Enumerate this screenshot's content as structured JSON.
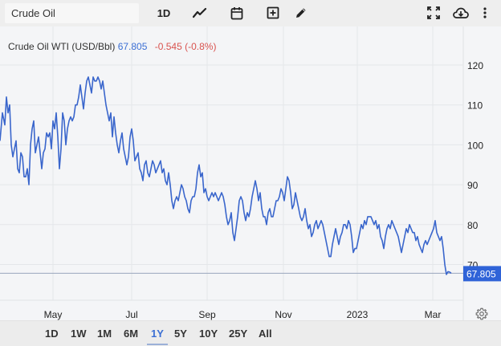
{
  "toolbar": {
    "search_value": "Crude Oil",
    "interval_label": "1D",
    "icons": [
      "line-chart-icon",
      "calendar-icon",
      "add-box-icon",
      "pencil-icon",
      "fullscreen-icon",
      "cloud-download-icon",
      "more-vertical-icon"
    ]
  },
  "legend": {
    "instrument": "Crude Oil WTI (USD/Bbl)",
    "price": "67.805",
    "change": "-0.545 (-0.8%)"
  },
  "price_tag": "67.805",
  "range_buttons": [
    {
      "label": "1D",
      "active": false
    },
    {
      "label": "1W",
      "active": false
    },
    {
      "label": "1M",
      "active": false
    },
    {
      "label": "6M",
      "active": false
    },
    {
      "label": "1Y",
      "active": true
    },
    {
      "label": "5Y",
      "active": false
    },
    {
      "label": "10Y",
      "active": false
    },
    {
      "label": "25Y",
      "active": false
    },
    {
      "label": "All",
      "active": false
    }
  ],
  "colors": {
    "line": "#3a66cc",
    "price_tag_bg": "#2f63d8",
    "change_negative": "#d9534f",
    "price_text": "#3b6fd4",
    "grid": "#e4e6ea"
  },
  "chart_data": {
    "type": "line",
    "title": "Crude Oil WTI (USD/Bbl)",
    "xlabel": "",
    "ylabel": "",
    "x_tick_labels": [
      "May",
      "Jul",
      "Sep",
      "Nov",
      "2023",
      "Mar"
    ],
    "y_tick_labels": [
      "70",
      "80",
      "90",
      "100",
      "110",
      "120"
    ],
    "ylim": [
      62,
      124
    ],
    "grid": true,
    "last_value": 67.805,
    "change": -0.545,
    "change_pct": -0.8,
    "series": [
      {
        "name": "Crude Oil WTI",
        "points": [
          [
            0,
            101
          ],
          [
            3,
            108
          ],
          [
            6,
            105
          ],
          [
            8,
            112
          ],
          [
            10,
            108
          ],
          [
            12,
            110
          ],
          [
            14,
            100
          ],
          [
            16,
            97
          ],
          [
            18,
            99
          ],
          [
            20,
            101
          ],
          [
            22,
            94
          ],
          [
            24,
            93
          ],
          [
            26,
            98
          ],
          [
            28,
            97
          ],
          [
            30,
            92
          ],
          [
            32,
            92
          ],
          [
            34,
            94
          ],
          [
            36,
            90
          ],
          [
            38,
            100
          ],
          [
            40,
            104
          ],
          [
            42,
            106
          ],
          [
            44,
            98
          ],
          [
            46,
            100
          ],
          [
            48,
            102
          ],
          [
            50,
            98
          ],
          [
            52,
            94
          ],
          [
            54,
            98
          ],
          [
            56,
            99
          ],
          [
            58,
            103
          ],
          [
            60,
            102
          ],
          [
            62,
            103
          ],
          [
            64,
            99
          ],
          [
            66,
            106
          ],
          [
            68,
            104
          ],
          [
            70,
            108
          ],
          [
            72,
            102
          ],
          [
            74,
            94
          ],
          [
            76,
            99
          ],
          [
            78,
            108
          ],
          [
            80,
            106
          ],
          [
            82,
            100
          ],
          [
            84,
            104
          ],
          [
            86,
            106
          ],
          [
            88,
            107
          ],
          [
            90,
            106
          ],
          [
            92,
            107
          ],
          [
            94,
            110
          ],
          [
            96,
            110
          ],
          [
            98,
            112
          ],
          [
            100,
            115
          ],
          [
            102,
            112
          ],
          [
            104,
            109
          ],
          [
            106,
            113
          ],
          [
            108,
            116
          ],
          [
            110,
            117
          ],
          [
            112,
            115
          ],
          [
            114,
            113
          ],
          [
            116,
            117
          ],
          [
            118,
            116
          ],
          [
            120,
            116
          ],
          [
            122,
            117
          ],
          [
            124,
            116
          ],
          [
            126,
            114
          ],
          [
            128,
            116
          ],
          [
            130,
            113
          ],
          [
            132,
            110
          ],
          [
            134,
            108
          ],
          [
            136,
            106
          ],
          [
            138,
            108
          ],
          [
            140,
            102
          ],
          [
            142,
            107
          ],
          [
            144,
            103
          ],
          [
            146,
            100
          ],
          [
            148,
            98
          ],
          [
            150,
            101
          ],
          [
            152,
            103
          ],
          [
            154,
            99
          ],
          [
            156,
            97
          ],
          [
            158,
            95
          ],
          [
            160,
            97
          ],
          [
            162,
            102
          ],
          [
            164,
            104
          ],
          [
            166,
            101
          ],
          [
            168,
            96
          ],
          [
            170,
            97
          ],
          [
            172,
            98
          ],
          [
            174,
            94
          ],
          [
            176,
            93
          ],
          [
            178,
            91
          ],
          [
            180,
            95
          ],
          [
            182,
            96
          ],
          [
            184,
            93
          ],
          [
            186,
            92
          ],
          [
            188,
            94
          ],
          [
            190,
            96
          ],
          [
            192,
            95
          ],
          [
            194,
            93
          ],
          [
            196,
            94
          ],
          [
            198,
            95
          ],
          [
            200,
            96
          ],
          [
            202,
            93
          ],
          [
            204,
            94
          ],
          [
            206,
            91
          ],
          [
            208,
            90
          ],
          [
            210,
            93
          ],
          [
            212,
            90
          ],
          [
            214,
            86
          ],
          [
            216,
            84
          ],
          [
            218,
            86
          ],
          [
            220,
            87
          ],
          [
            222,
            86
          ],
          [
            224,
            88
          ],
          [
            226,
            90
          ],
          [
            228,
            89
          ],
          [
            230,
            87
          ],
          [
            232,
            86
          ],
          [
            234,
            84
          ],
          [
            236,
            83
          ],
          [
            238,
            86
          ],
          [
            240,
            87
          ],
          [
            242,
            87
          ],
          [
            244,
            89
          ],
          [
            246,
            93
          ],
          [
            248,
            95
          ],
          [
            250,
            92
          ],
          [
            252,
            93
          ],
          [
            254,
            88
          ],
          [
            256,
            89
          ],
          [
            258,
            87
          ],
          [
            260,
            86
          ],
          [
            262,
            87
          ],
          [
            264,
            88
          ],
          [
            266,
            87
          ],
          [
            268,
            88
          ],
          [
            270,
            87
          ],
          [
            272,
            86
          ],
          [
            274,
            87
          ],
          [
            276,
            88
          ],
          [
            278,
            87
          ],
          [
            280,
            85
          ],
          [
            282,
            82
          ],
          [
            284,
            80
          ],
          [
            286,
            81
          ],
          [
            288,
            83
          ],
          [
            290,
            78
          ],
          [
            292,
            76
          ],
          [
            294,
            79
          ],
          [
            296,
            82
          ],
          [
            298,
            86
          ],
          [
            300,
            87
          ],
          [
            302,
            86
          ],
          [
            304,
            83
          ],
          [
            306,
            81
          ],
          [
            308,
            83
          ],
          [
            310,
            82
          ],
          [
            312,
            84
          ],
          [
            314,
            87
          ],
          [
            316,
            89
          ],
          [
            318,
            91
          ],
          [
            320,
            89
          ],
          [
            322,
            86
          ],
          [
            324,
            88
          ],
          [
            326,
            84
          ],
          [
            328,
            82
          ],
          [
            330,
            82
          ],
          [
            332,
            80
          ],
          [
            334,
            83
          ],
          [
            336,
            84
          ],
          [
            338,
            82
          ],
          [
            340,
            82
          ],
          [
            342,
            84
          ],
          [
            344,
            86
          ],
          [
            346,
            86
          ],
          [
            348,
            87
          ],
          [
            350,
            89
          ],
          [
            352,
            88
          ],
          [
            354,
            86
          ],
          [
            356,
            89
          ],
          [
            358,
            92
          ],
          [
            360,
            91
          ],
          [
            362,
            88
          ],
          [
            364,
            84
          ],
          [
            366,
            85
          ],
          [
            368,
            88
          ],
          [
            370,
            86
          ],
          [
            372,
            84
          ],
          [
            374,
            82
          ],
          [
            376,
            81
          ],
          [
            378,
            82
          ],
          [
            380,
            84
          ],
          [
            382,
            81
          ],
          [
            384,
            79
          ],
          [
            386,
            80
          ],
          [
            388,
            77
          ],
          [
            390,
            78
          ],
          [
            392,
            80
          ],
          [
            394,
            81
          ],
          [
            396,
            79
          ],
          [
            398,
            80
          ],
          [
            400,
            81
          ],
          [
            402,
            80
          ],
          [
            404,
            78
          ],
          [
            406,
            76
          ],
          [
            408,
            74
          ],
          [
            410,
            72
          ],
          [
            412,
            72
          ],
          [
            414,
            75
          ],
          [
            416,
            77
          ],
          [
            418,
            79
          ],
          [
            420,
            77
          ],
          [
            422,
            75
          ],
          [
            424,
            77
          ],
          [
            426,
            78
          ],
          [
            428,
            80
          ],
          [
            430,
            80
          ],
          [
            432,
            79
          ],
          [
            434,
            81
          ],
          [
            436,
            80
          ],
          [
            438,
            77
          ],
          [
            440,
            73
          ],
          [
            442,
            74
          ],
          [
            444,
            74
          ],
          [
            446,
            76
          ],
          [
            448,
            78
          ],
          [
            450,
            80
          ],
          [
            452,
            79
          ],
          [
            454,
            81
          ],
          [
            456,
            80
          ],
          [
            458,
            82
          ],
          [
            460,
            82
          ],
          [
            462,
            82
          ],
          [
            464,
            81
          ],
          [
            466,
            80
          ],
          [
            468,
            81
          ],
          [
            470,
            79
          ],
          [
            472,
            80
          ],
          [
            474,
            77
          ],
          [
            476,
            76
          ],
          [
            478,
            74
          ],
          [
            480,
            77
          ],
          [
            482,
            79
          ],
          [
            484,
            80
          ],
          [
            486,
            79
          ],
          [
            488,
            81
          ],
          [
            490,
            80
          ],
          [
            492,
            79
          ],
          [
            494,
            78
          ],
          [
            496,
            77
          ],
          [
            498,
            75
          ],
          [
            500,
            73
          ],
          [
            502,
            75
          ],
          [
            504,
            77
          ],
          [
            506,
            79
          ],
          [
            508,
            78
          ],
          [
            510,
            80
          ],
          [
            512,
            79
          ],
          [
            514,
            78
          ],
          [
            516,
            78
          ],
          [
            518,
            76
          ],
          [
            520,
            77
          ],
          [
            522,
            75
          ],
          [
            524,
            74
          ],
          [
            526,
            73
          ],
          [
            528,
            75
          ],
          [
            530,
            76
          ],
          [
            532,
            75
          ],
          [
            534,
            76
          ],
          [
            536,
            77
          ],
          [
            538,
            78
          ],
          [
            540,
            79
          ],
          [
            542,
            81
          ],
          [
            544,
            78
          ],
          [
            546,
            77
          ],
          [
            548,
            76
          ],
          [
            550,
            77
          ],
          [
            552,
            74
          ],
          [
            554,
            70
          ],
          [
            556,
            67.5
          ],
          [
            558,
            68.2
          ],
          [
            560,
            68.1
          ],
          [
            562,
            67.8
          ]
        ]
      }
    ]
  }
}
